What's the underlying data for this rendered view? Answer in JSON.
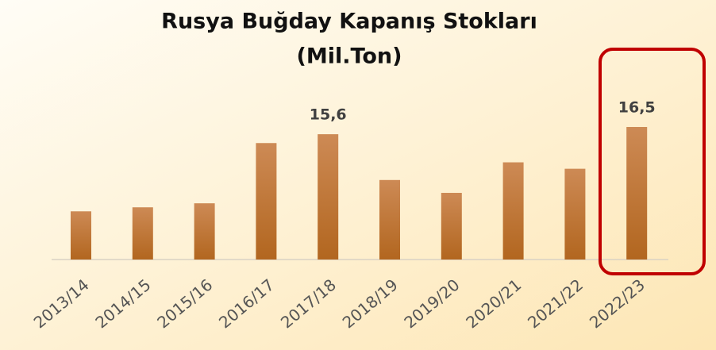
{
  "chart_data": {
    "type": "bar",
    "title": "Rusya Buğday Kapanış Stokları",
    "subtitle": "(Mil.Ton)",
    "categories": [
      "2013/14",
      "2014/15",
      "2015/16",
      "2016/17",
      "2017/18",
      "2018/19",
      "2019/20",
      "2020/21",
      "2021/22",
      "2022/23"
    ],
    "values": [
      6.0,
      6.5,
      7.0,
      14.5,
      15.6,
      9.9,
      8.3,
      12.1,
      11.3,
      16.5
    ],
    "value_labels": [
      null,
      null,
      null,
      null,
      "15,6",
      null,
      null,
      null,
      null,
      "16,5"
    ],
    "color": "#c07536"
  }
}
